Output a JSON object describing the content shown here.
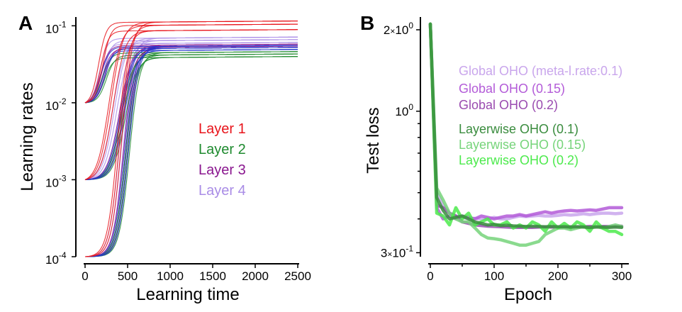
{
  "panels": [
    {
      "letter": "A"
    },
    {
      "letter": "B"
    }
  ],
  "chart_data": [
    {
      "type": "line",
      "panel": "A",
      "xlabel": "Learning time",
      "ylabel": "Learning rates",
      "xlim": [
        0,
        2500
      ],
      "ylim": [
        0.0001,
        0.13
      ],
      "yscale": "log",
      "xticks": [
        "0",
        "500",
        "1000",
        "1500",
        "2000",
        "2500"
      ],
      "yticks": [
        {
          "base": "10",
          "exp": "-4"
        },
        {
          "base": "10",
          "exp": "-3"
        },
        {
          "base": "10",
          "exp": "-2"
        },
        {
          "base": "10",
          "exp": "-1"
        }
      ],
      "legend_position": "center-right",
      "series": [
        {
          "name": "Layer 1",
          "color": "#e8141b",
          "init": [
            0.0001,
            0.001,
            0.01
          ],
          "final": [
            0.085,
            0.1,
            0.11
          ]
        },
        {
          "name": "Layer 2",
          "color": "#1e8a2e",
          "init": [
            0.0001,
            0.001,
            0.01
          ],
          "final": [
            0.038,
            0.041,
            0.044
          ]
        },
        {
          "name": "Layer 3",
          "color": "#8a168f",
          "init": [
            0.0001,
            0.001,
            0.01
          ],
          "final": [
            0.05,
            0.052,
            0.055
          ]
        },
        {
          "name": "Layer 4",
          "color": "#a98ce6",
          "init": [
            0.0001,
            0.001,
            0.01
          ],
          "final": [
            0.058,
            0.063,
            0.068
          ]
        },
        {
          "name": "",
          "color": "#2233cc",
          "init": [
            0.0001,
            0.001,
            0.01
          ],
          "final": [
            0.047,
            0.05,
            0.053
          ]
        }
      ]
    },
    {
      "type": "line",
      "panel": "B",
      "xlabel": "Epoch",
      "ylabel": "Test loss",
      "xlim": [
        -5,
        310
      ],
      "ylim": [
        0.29,
        2.15
      ],
      "yscale": "log",
      "xticks": [
        "0",
        "100",
        "200",
        "300"
      ],
      "yticks": [
        {
          "value": 0.3,
          "label": "3",
          "exp": "-1"
        },
        {
          "value": 1.0,
          "label": "",
          "exp": "0"
        },
        {
          "value": 2.0,
          "label": "2",
          "exp": "0"
        }
      ],
      "legend_position": "top-right",
      "x": [
        0,
        10,
        20,
        30,
        40,
        50,
        60,
        70,
        80,
        90,
        100,
        110,
        120,
        130,
        140,
        150,
        160,
        170,
        180,
        190,
        200,
        210,
        220,
        230,
        240,
        250,
        260,
        270,
        280,
        290,
        300
      ],
      "series": [
        {
          "name": "Global OHO (meta-l.rate:0.1)",
          "color": "#c9a6ec",
          "values": [
            2.1,
            0.5,
            0.45,
            0.42,
            0.41,
            0.405,
            0.4,
            0.402,
            0.4,
            0.4,
            0.405,
            0.4,
            0.4,
            0.405,
            0.41,
            0.408,
            0.41,
            0.412,
            0.41,
            0.41,
            0.412,
            0.415,
            0.413,
            0.415,
            0.418,
            0.415,
            0.418,
            0.42,
            0.42,
            0.418,
            0.42
          ]
        },
        {
          "name": "Global OHO (0.15)",
          "color": "#b35bd8",
          "values": [
            2.1,
            0.44,
            0.4,
            0.41,
            0.4,
            0.41,
            0.405,
            0.4,
            0.41,
            0.405,
            0.4,
            0.405,
            0.41,
            0.41,
            0.415,
            0.41,
            0.415,
            0.42,
            0.425,
            0.42,
            0.425,
            0.428,
            0.43,
            0.428,
            0.43,
            0.432,
            0.43,
            0.435,
            0.44,
            0.44,
            0.44
          ]
        },
        {
          "name": "Global OHO (0.2)",
          "color": "#9a4bb0",
          "values": [
            2.1,
            0.45,
            0.44,
            0.42,
            0.41,
            0.39,
            0.385,
            0.38,
            0.378,
            0.376,
            0.375,
            0.374,
            0.373,
            0.372,
            0.372,
            0.372,
            0.372,
            0.373,
            0.373,
            0.373,
            0.373,
            0.374,
            0.374,
            0.374,
            0.374,
            0.375,
            0.375,
            0.375,
            0.375,
            0.376,
            0.376
          ]
        },
        {
          "name": "Layerwise OHO (0.1)",
          "color": "#3a8c3e",
          "values": [
            2.1,
            0.48,
            0.43,
            0.4,
            0.405,
            0.41,
            0.4,
            0.39,
            0.385,
            0.38,
            0.382,
            0.378,
            0.379,
            0.377,
            0.376,
            0.375,
            0.376,
            0.375,
            0.374,
            0.375,
            0.374,
            0.374,
            0.373,
            0.374,
            0.373,
            0.372,
            0.373,
            0.373,
            0.372,
            0.373,
            0.372
          ]
        },
        {
          "name": "Layerwise OHO (0.15)",
          "color": "#76d47a",
          "values": [
            2.1,
            0.52,
            0.47,
            0.42,
            0.4,
            0.39,
            0.39,
            0.37,
            0.35,
            0.34,
            0.338,
            0.335,
            0.33,
            0.325,
            0.32,
            0.32,
            0.325,
            0.33,
            0.35,
            0.36,
            0.37,
            0.37,
            0.365,
            0.37,
            0.375,
            0.37,
            0.375,
            0.37,
            0.375,
            0.38,
            0.375
          ]
        },
        {
          "name": "Layerwise OHO (0.2)",
          "color": "#4cea4c",
          "values": [
            2.1,
            0.42,
            0.41,
            0.38,
            0.44,
            0.4,
            0.42,
            0.38,
            0.39,
            0.4,
            0.38,
            0.38,
            0.39,
            0.37,
            0.38,
            0.37,
            0.39,
            0.38,
            0.36,
            0.39,
            0.37,
            0.385,
            0.37,
            0.39,
            0.38,
            0.36,
            0.39,
            0.37,
            0.36,
            0.36,
            0.35
          ]
        }
      ]
    }
  ]
}
